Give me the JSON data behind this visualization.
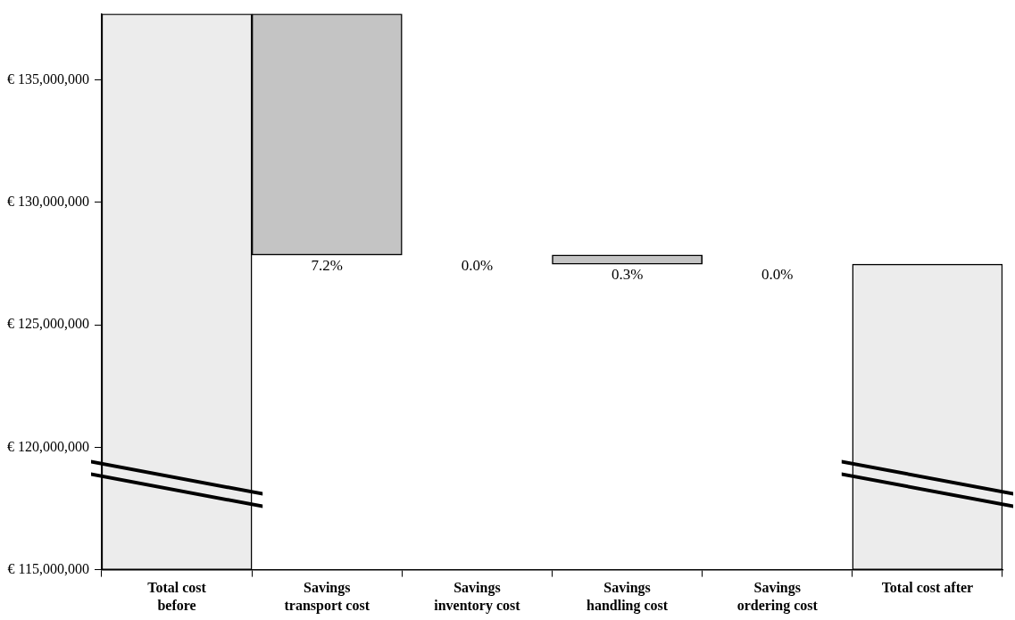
{
  "chart_data": {
    "type": "bar",
    "categories": [
      "Total cost before",
      "Savings transport cost",
      "Savings inventory cost",
      "Savings handling cost",
      "Savings ordering cost",
      "Total cost after"
    ],
    "values": [
      22700000,
      9850000,
      0,
      370000,
      0,
      12480000
    ],
    "base": [
      115000000,
      127850000,
      127850000,
      127480000,
      127480000,
      115000000
    ],
    "colors": [
      "#ececec",
      "#c4c4c4",
      "#c4c4c4",
      "#c4c4c4",
      "#c4c4c4",
      "#ececec"
    ],
    "annotations": [
      {
        "text": "7.2%",
        "x": "Savings transport cost",
        "y": 127850000
      },
      {
        "text": "0.0%",
        "x": "Savings inventory cost",
        "y": 127850000
      },
      {
        "text": "0.3%",
        "x": "Savings handling cost",
        "y": 127480000
      },
      {
        "text": "0.0%",
        "x": "Savings ordering cost",
        "y": 127480000
      }
    ],
    "ylim": [
      115000000,
      137700000
    ],
    "yticks": [
      {
        "value": 115000000,
        "label": "€ 115,000,000"
      },
      {
        "value": 120000000,
        "label": "€ 120,000,000"
      },
      {
        "value": 125000000,
        "label": "€ 125,000,000"
      },
      {
        "value": 130000000,
        "label": "€ 130,000,000"
      },
      {
        "value": 135000000,
        "label": "€ 135,000,000"
      }
    ],
    "grid": false,
    "legend": false
  }
}
